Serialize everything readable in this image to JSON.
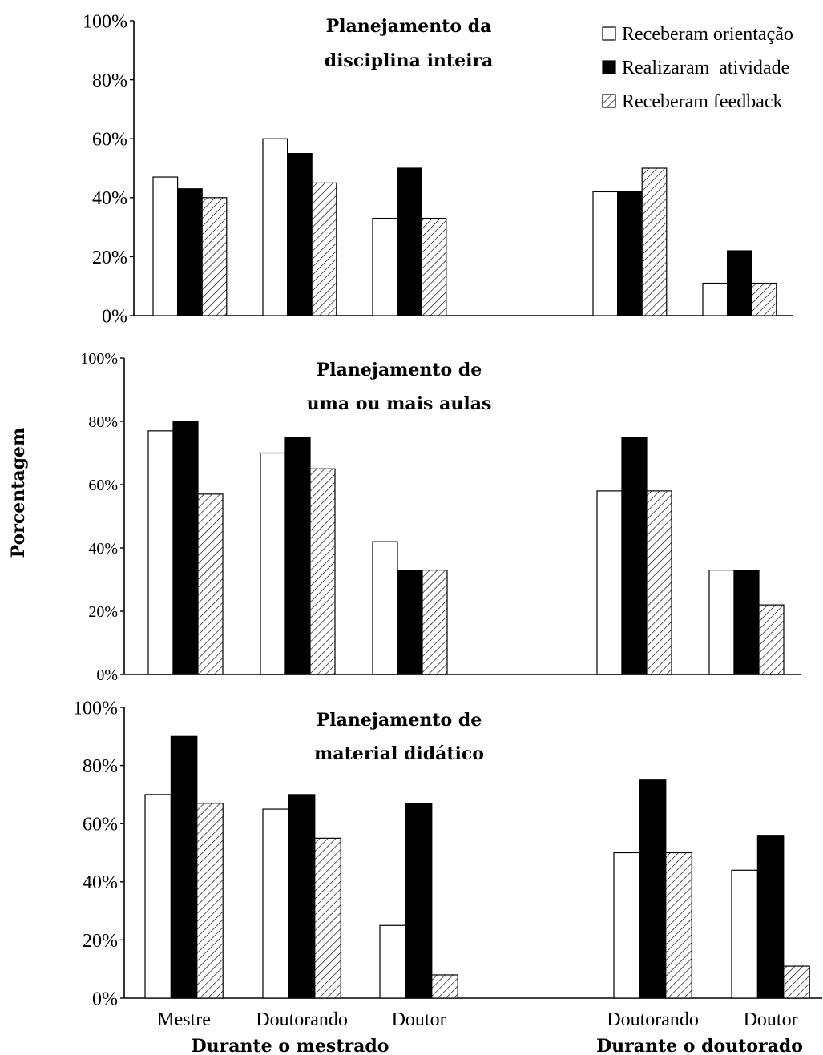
{
  "y_axis_title": "Porcentagem",
  "legend": [
    {
      "label": "Receberam orientação",
      "fill": "white"
    },
    {
      "label": "Realizaram  atividade",
      "fill": "black"
    },
    {
      "label": "Receberam feedback",
      "fill": "hatch"
    }
  ],
  "x_groups": [
    {
      "label": "Durante o mestrado",
      "categories": [
        "Mestre",
        "Doutorando",
        "Doutor"
      ]
    },
    {
      "label": "Durante o doutorado",
      "categories": [
        "Doutorando",
        "Doutor"
      ]
    }
  ],
  "colors": {
    "background": "#ffffff",
    "ink": "#000000"
  },
  "chart_data": [
    {
      "type": "bar",
      "title_lines": [
        "Planejamento da",
        "disciplina inteira"
      ],
      "categories": [
        "Mestre",
        "Doutorando",
        "Doutor",
        "Doutorando",
        "Doutor"
      ],
      "ylim": [
        0,
        100
      ],
      "yticks": [
        "0%",
        "20%",
        "40%",
        "60%",
        "80%",
        "100%"
      ],
      "grid": false,
      "legend_position": "top-right",
      "series": [
        {
          "name": "Receberam orientação",
          "values": [
            47,
            60,
            33,
            42,
            11
          ]
        },
        {
          "name": "Realizaram  atividade",
          "values": [
            43,
            55,
            50,
            42,
            22
          ]
        },
        {
          "name": "Receberam feedback",
          "values": [
            40,
            45,
            33,
            50,
            11
          ]
        }
      ]
    },
    {
      "type": "bar",
      "title_lines": [
        "Planejamento de",
        "uma ou mais aulas"
      ],
      "categories": [
        "Mestre",
        "Doutorando",
        "Doutor",
        "Doutorando",
        "Doutor"
      ],
      "ylim": [
        0,
        100
      ],
      "yticks": [
        "0%",
        "20%",
        "40%",
        "60%",
        "80%",
        "100%"
      ],
      "grid": false,
      "series": [
        {
          "name": "Receberam orientação",
          "values": [
            77,
            70,
            42,
            58,
            33
          ]
        },
        {
          "name": "Realizaram  atividade",
          "values": [
            80,
            75,
            33,
            75,
            33
          ]
        },
        {
          "name": "Receberam feedback",
          "values": [
            57,
            65,
            33,
            58,
            22
          ]
        }
      ]
    },
    {
      "type": "bar",
      "title_lines": [
        "Planejamento de",
        "material didático"
      ],
      "categories": [
        "Mestre",
        "Doutorando",
        "Doutor",
        "Doutorando",
        "Doutor"
      ],
      "ylim": [
        0,
        100
      ],
      "yticks": [
        "0%",
        "20%",
        "40%",
        "60%",
        "80%",
        "100%"
      ],
      "grid": false,
      "series": [
        {
          "name": "Receberam orientação",
          "values": [
            70,
            65,
            25,
            50,
            44
          ]
        },
        {
          "name": "Realizaram  atividade",
          "values": [
            90,
            70,
            67,
            75,
            56
          ]
        },
        {
          "name": "Receberam feedback",
          "values": [
            67,
            55,
            8,
            50,
            11
          ]
        }
      ]
    }
  ]
}
